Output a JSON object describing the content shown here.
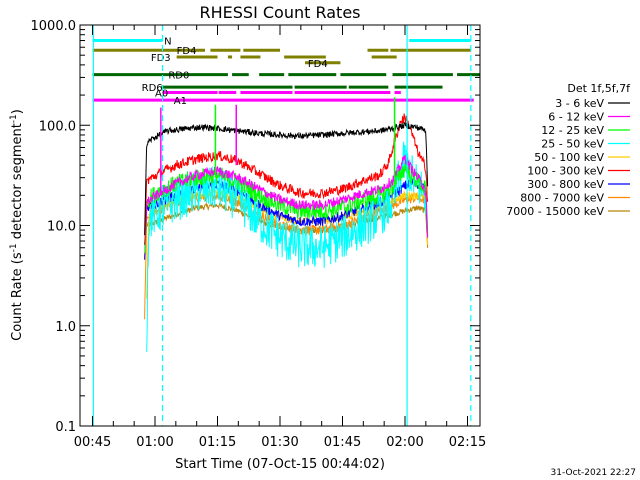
{
  "chart_data": {
    "type": "line",
    "title": "RHESSI Count Rates",
    "xlabel": "Start Time (07-Oct-15 00:44:02)",
    "ylabel": "Count Rate (s",
    "ylabel_sup": "-1",
    "ylabel_mid": " detector segment",
    "ylabel_end": ")",
    "y_scale": "log",
    "ylim": [
      0.1,
      1000
    ],
    "xlim_minutes": [
      42,
      138
    ],
    "x_ticks": [
      {
        "minute": 45,
        "label": "00:45"
      },
      {
        "minute": 60,
        "label": "01:00"
      },
      {
        "minute": 75,
        "label": "01:15"
      },
      {
        "minute": 90,
        "label": "01:30"
      },
      {
        "minute": 105,
        "label": "01:45"
      },
      {
        "minute": 120,
        "label": "02:00"
      },
      {
        "minute": 135,
        "label": "02:15"
      }
    ],
    "y_ticks": [
      {
        "value": 1000,
        "label": "1000.0"
      },
      {
        "value": 100,
        "label": "100.0"
      },
      {
        "value": 10,
        "label": "10.0"
      },
      {
        "value": 1,
        "label": "1.0"
      },
      {
        "value": 0.1,
        "label": "0.1"
      }
    ],
    "legend_title": "Det 1f,5f,7f",
    "legend_placement": "right",
    "data_window_minutes": [
      57.5,
      125.5
    ],
    "series": [
      {
        "name": "3 - 6 keV",
        "color": "#000000",
        "noise": 0.03,
        "points": [
          [
            57.5,
            8
          ],
          [
            58,
            65
          ],
          [
            59,
            72
          ],
          [
            61,
            80
          ],
          [
            63,
            88
          ],
          [
            67,
            92
          ],
          [
            71,
            96
          ],
          [
            75,
            93
          ],
          [
            80,
            88
          ],
          [
            85,
            83
          ],
          [
            90,
            80
          ],
          [
            95,
            78
          ],
          [
            100,
            80
          ],
          [
            105,
            83
          ],
          [
            110,
            86
          ],
          [
            114,
            88
          ],
          [
            117,
            93
          ],
          [
            120,
            100
          ],
          [
            123,
            95
          ],
          [
            124,
            92
          ],
          [
            125,
            88
          ],
          [
            125.5,
            20
          ]
        ]
      },
      {
        "name": "6 - 12 keV",
        "color": "#ff00ff",
        "noise": 0.05,
        "points": [
          [
            57.5,
            6
          ],
          [
            58,
            17
          ],
          [
            61,
            21
          ],
          [
            65,
            26
          ],
          [
            70,
            32
          ],
          [
            75,
            35
          ],
          [
            80,
            30
          ],
          [
            85,
            23
          ],
          [
            90,
            18
          ],
          [
            95,
            16
          ],
          [
            100,
            16
          ],
          [
            105,
            18
          ],
          [
            110,
            21
          ],
          [
            114,
            23
          ],
          [
            117,
            28
          ],
          [
            119,
            40
          ],
          [
            120,
            48
          ],
          [
            121,
            40
          ],
          [
            123,
            30
          ],
          [
            124.5,
            25
          ],
          [
            125,
            20
          ],
          [
            125.5,
            6
          ]
        ]
      },
      {
        "name": "12 - 25 keV",
        "color": "#00ff00",
        "noise": 0.09,
        "points": [
          [
            57.5,
            5
          ],
          [
            58,
            18
          ],
          [
            61,
            22
          ],
          [
            65,
            26
          ],
          [
            70,
            30
          ],
          [
            75,
            32
          ],
          [
            80,
            27
          ],
          [
            85,
            20
          ],
          [
            90,
            16
          ],
          [
            95,
            14
          ],
          [
            100,
            14
          ],
          [
            105,
            15
          ],
          [
            110,
            18
          ],
          [
            114,
            20
          ],
          [
            117,
            24
          ],
          [
            119,
            33
          ],
          [
            120,
            38
          ],
          [
            121,
            33
          ],
          [
            123,
            28
          ],
          [
            124.5,
            24
          ],
          [
            125,
            22
          ],
          [
            125.5,
            6
          ]
        ]
      },
      {
        "name": "25 - 50 keV",
        "color": "#00ffff",
        "noise": 0.22,
        "points": [
          [
            58,
            0.85
          ],
          [
            58.5,
            12
          ],
          [
            61,
            14
          ],
          [
            65,
            18
          ],
          [
            70,
            22
          ],
          [
            75,
            24
          ],
          [
            80,
            18
          ],
          [
            85,
            11
          ],
          [
            90,
            7.5
          ],
          [
            95,
            6
          ],
          [
            100,
            6
          ],
          [
            105,
            7.5
          ],
          [
            110,
            10
          ],
          [
            114,
            13
          ],
          [
            117,
            17
          ],
          [
            119,
            35
          ],
          [
            120,
            45
          ],
          [
            121,
            35
          ],
          [
            123,
            25
          ],
          [
            124.5,
            22
          ],
          [
            125,
            18
          ],
          [
            125.5,
            6
          ]
        ]
      },
      {
        "name": "50 - 100 keV",
        "color": "#ffcc00",
        "noise": 0.04,
        "points": [
          [
            58,
            2
          ],
          [
            58.5,
            13
          ],
          [
            61,
            15
          ],
          [
            65,
            18
          ],
          [
            70,
            20
          ],
          [
            75,
            22
          ],
          [
            80,
            19
          ],
          [
            85,
            15
          ],
          [
            90,
            12
          ],
          [
            95,
            11
          ],
          [
            100,
            11
          ],
          [
            105,
            12
          ],
          [
            110,
            14
          ],
          [
            114,
            16
          ],
          [
            117,
            18
          ],
          [
            120,
            20
          ],
          [
            123,
            20
          ],
          [
            125,
            19
          ],
          [
            125.5,
            5
          ]
        ]
      },
      {
        "name": "100 - 300 keV",
        "color": "#ff0000",
        "noise": 0.05,
        "points": [
          [
            57.5,
            6
          ],
          [
            58,
            28
          ],
          [
            61,
            33
          ],
          [
            65,
            40
          ],
          [
            70,
            46
          ],
          [
            75,
            50
          ],
          [
            80,
            44
          ],
          [
            85,
            33
          ],
          [
            90,
            25
          ],
          [
            95,
            21
          ],
          [
            100,
            21
          ],
          [
            105,
            23
          ],
          [
            110,
            28
          ],
          [
            114,
            32
          ],
          [
            116,
            42
          ],
          [
            118,
            80
          ],
          [
            119,
            110
          ],
          [
            120,
            120
          ],
          [
            121,
            100
          ],
          [
            122,
            75
          ],
          [
            123,
            55
          ],
          [
            124,
            45
          ],
          [
            125,
            38
          ],
          [
            125.5,
            15
          ]
        ]
      },
      {
        "name": "300 - 800 keV",
        "color": "#0000ff",
        "noise": 0.05,
        "points": [
          [
            57.5,
            5
          ],
          [
            58,
            15
          ],
          [
            61,
            17
          ],
          [
            65,
            20
          ],
          [
            70,
            23
          ],
          [
            75,
            26
          ],
          [
            80,
            22
          ],
          [
            85,
            16
          ],
          [
            90,
            12.5
          ],
          [
            95,
            11
          ],
          [
            100,
            11
          ],
          [
            105,
            12.5
          ],
          [
            110,
            15
          ],
          [
            114,
            17
          ],
          [
            117,
            20
          ],
          [
            119,
            23
          ],
          [
            120,
            25
          ],
          [
            122,
            27
          ],
          [
            124,
            25
          ],
          [
            125,
            23
          ],
          [
            125.5,
            6
          ]
        ]
      },
      {
        "name": "800 - 7000 keV",
        "color": "#ff8800",
        "noise": 0.05,
        "points": [
          [
            57.5,
            1.2
          ],
          [
            58,
            12
          ],
          [
            61,
            14
          ],
          [
            65,
            17
          ],
          [
            70,
            19
          ],
          [
            75,
            20
          ],
          [
            80,
            17
          ],
          [
            85,
            13
          ],
          [
            90,
            10
          ],
          [
            95,
            9
          ],
          [
            100,
            9
          ],
          [
            105,
            10
          ],
          [
            110,
            12
          ],
          [
            114,
            14
          ],
          [
            117,
            16
          ],
          [
            120,
            18
          ],
          [
            123,
            19
          ],
          [
            125,
            18
          ],
          [
            125.5,
            5.5
          ]
        ]
      },
      {
        "name": "7000 - 15000 keV",
        "color": "#b8860b",
        "noise": 0.03,
        "points": [
          [
            58,
            10
          ],
          [
            61,
            11
          ],
          [
            65,
            13
          ],
          [
            70,
            15
          ],
          [
            75,
            16
          ],
          [
            80,
            14
          ],
          [
            85,
            11
          ],
          [
            90,
            9.5
          ],
          [
            95,
            9
          ],
          [
            100,
            9
          ],
          [
            105,
            9.5
          ],
          [
            110,
            11
          ],
          [
            114,
            12
          ],
          [
            117,
            13
          ],
          [
            120,
            14
          ],
          [
            123,
            15
          ],
          [
            125,
            14
          ],
          [
            125.5,
            5
          ]
        ]
      }
    ],
    "vlines": [
      {
        "minute": 45.2,
        "color": "#00ffff",
        "style": "solid"
      },
      {
        "minute": 61.8,
        "color": "#00ffff",
        "style": "dashed"
      },
      {
        "minute": 120.5,
        "color": "#00ffff",
        "style": "solid"
      },
      {
        "minute": 135.8,
        "color": "#00ffff",
        "style": "dashed"
      }
    ],
    "spikes": [
      {
        "minute": 61.4,
        "color": "#ff00ff",
        "from": 20,
        "to": 150
      },
      {
        "minute": 74.5,
        "color": "#00ff00",
        "from": 30,
        "to": 160
      },
      {
        "minute": 79.5,
        "color": "#ff00ff",
        "from": 40,
        "to": 160
      },
      {
        "minute": 117.5,
        "color": "#00ff00",
        "from": 30,
        "to": 190
      }
    ],
    "flags": [
      {
        "label": "N",
        "color": "#00ffff",
        "row_value": 700,
        "label_minute": 62.2,
        "segments": [
          [
            45,
            61.8
          ],
          [
            121,
            135.8
          ]
        ]
      },
      {
        "label": "FD4",
        "color": "#808000",
        "row_value": 560,
        "label_minute": 65.2,
        "segments": [
          [
            45,
            72
          ],
          [
            73.3,
            80.5
          ],
          [
            81.2,
            90
          ],
          [
            111,
            116
          ],
          [
            116.5,
            135.8
          ]
        ]
      },
      {
        "label": "FD3",
        "color": "#808000",
        "row_value": 480,
        "label_minute": 59.0,
        "segments": [
          [
            65.2,
            75
          ],
          [
            77.5,
            78.5
          ],
          [
            80.5,
            85.3
          ],
          [
            91,
            101
          ],
          [
            112,
            118
          ]
        ]
      },
      {
        "label": "FD4",
        "color": "#808000",
        "row_value": 420,
        "label_minute": 96.7,
        "segments": [
          [
            96,
            104.5
          ]
        ]
      },
      {
        "label": "RD0",
        "color": "#006400",
        "row_value": 320,
        "label_minute": 63.2,
        "segments": [
          [
            45,
            77.5
          ],
          [
            78.5,
            82.5
          ],
          [
            85,
            91
          ],
          [
            92,
            103.5
          ],
          [
            104.5,
            115.5
          ],
          [
            117,
            131.5
          ],
          [
            132.5,
            138
          ]
        ]
      },
      {
        "label": "RD6",
        "color": "#006400",
        "row_value": 240,
        "label_minute": 56.8,
        "segments": [
          [
            61.5,
            93
          ],
          [
            93.5,
            106
          ],
          [
            106.5,
            116
          ],
          [
            117.5,
            129
          ]
        ]
      },
      {
        "label": "A0",
        "color": "#ff00ff",
        "row_value": 212,
        "label_minute": 60.0,
        "segments": [
          [
            62,
            75
          ],
          [
            75.3,
            79.5
          ],
          [
            80.5,
            93
          ],
          [
            93.5,
            116.5
          ],
          [
            117.5,
            119
          ]
        ]
      },
      {
        "label": "A1",
        "color": "#ff00ff",
        "row_value": 178,
        "label_minute": 64.5,
        "segments": [
          [
            45,
            136.5
          ]
        ]
      }
    ]
  },
  "timestamp": "31-Oct-2021 22:27"
}
